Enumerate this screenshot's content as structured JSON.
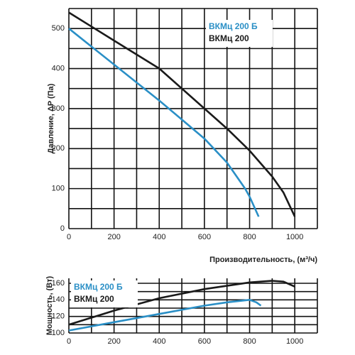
{
  "chart_data": [
    {
      "type": "line",
      "ylabel": "Давление, ΔP (Па)",
      "xlabel": "Производительность, (м³/ч)",
      "xlim": [
        0,
        1100
      ],
      "ylim": [
        0,
        550
      ],
      "xticks": [
        0,
        200,
        400,
        600,
        800,
        1000
      ],
      "yticks": [
        0,
        100,
        200,
        300,
        400,
        500
      ],
      "xgrid": [
        0,
        100,
        200,
        300,
        400,
        500,
        600,
        700,
        800,
        900,
        1000,
        1100
      ],
      "ygrid": [
        0,
        50,
        100,
        150,
        200,
        250,
        300,
        350,
        400,
        450,
        500,
        550
      ],
      "legend": "upper right",
      "series": [
        {
          "name": "ВКМц 200 Б",
          "color": "#2a8fc6",
          "x": [
            0,
            200,
            400,
            600,
            700,
            780,
            800,
            840
          ],
          "values": [
            500,
            410,
            320,
            225,
            165,
            100,
            80,
            30
          ]
        },
        {
          "name": "ВКМц 200",
          "color": "#1a1a1a",
          "x": [
            0,
            200,
            400,
            600,
            700,
            800,
            900,
            950,
            1000
          ],
          "values": [
            540,
            470,
            400,
            300,
            250,
            195,
            130,
            90,
            30
          ]
        }
      ]
    },
    {
      "type": "line",
      "ylabel": "Мощность, (Вт)",
      "xlim": [
        0,
        1100
      ],
      "ylim": [
        100,
        166
      ],
      "xticks": [
        0,
        200,
        400,
        600,
        800,
        1000
      ],
      "yticks": [
        100,
        120,
        140,
        160
      ],
      "xgrid": [
        0,
        100,
        200,
        300,
        400,
        500,
        600,
        700,
        800,
        900,
        1000,
        1100
      ],
      "ygrid": [
        100,
        110,
        120,
        130,
        140,
        150,
        160
      ],
      "legend": "upper left",
      "series": [
        {
          "name": "ВКМц 200 Б",
          "color": "#2a8fc6",
          "x": [
            0,
            200,
            400,
            600,
            700,
            800,
            830,
            850
          ],
          "values": [
            103,
            113,
            123,
            133,
            137,
            140,
            137,
            133
          ]
        },
        {
          "name": "ВКМц 200",
          "color": "#1a1a1a",
          "x": [
            0,
            200,
            400,
            600,
            800,
            900,
            950,
            1000
          ],
          "values": [
            110,
            127,
            142,
            153,
            161,
            163,
            162,
            156
          ]
        }
      ]
    }
  ]
}
